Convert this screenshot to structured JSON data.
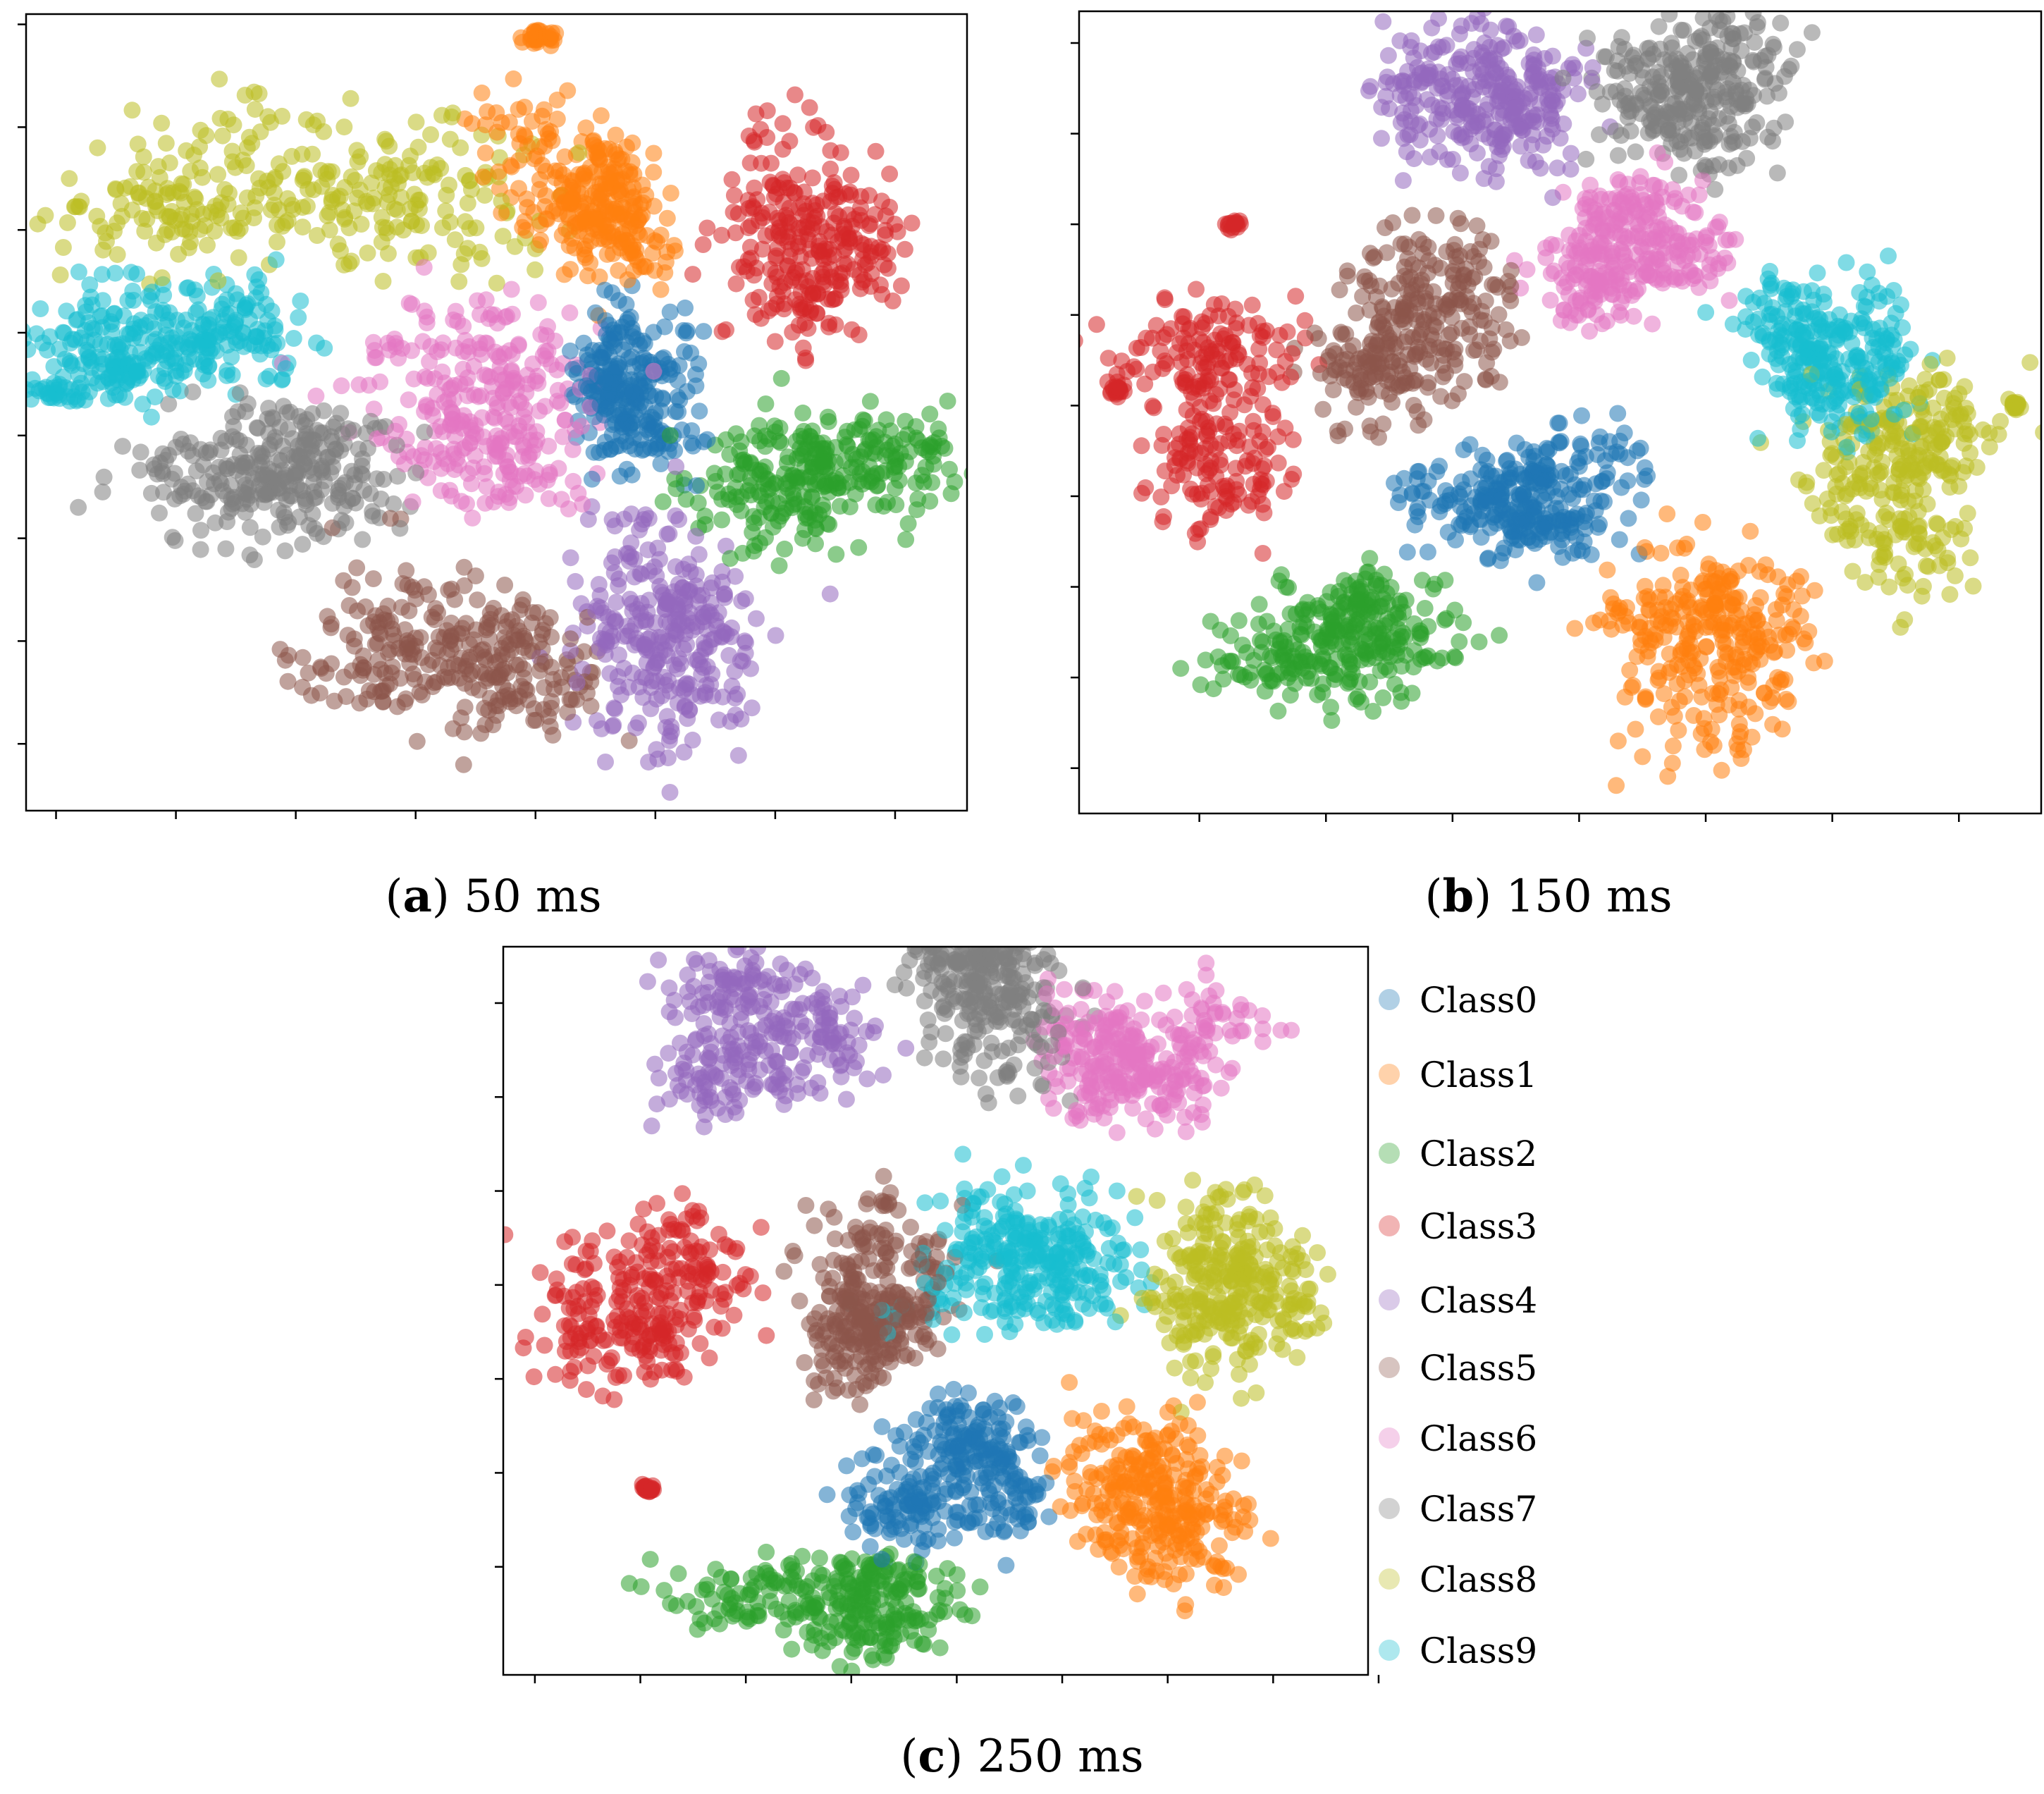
{
  "chart_data": [
    {
      "type": "scatter",
      "panel": "a",
      "caption_label": "a",
      "caption_text": " 50 ms",
      "xlabel": "",
      "ylabel": "",
      "tick_labels_shown": false,
      "grid": false,
      "x_ticks": [
        -80,
        -60,
        -40,
        -20,
        0,
        20,
        40,
        60
      ],
      "y_ticks": [
        -60,
        -40,
        -20,
        0,
        20,
        40,
        60,
        80
      ],
      "xlim": [
        -85,
        72
      ],
      "ylim": [
        -73,
        82
      ],
      "clusters": [
        {
          "class": 0,
          "lobes": [
            [
              18,
              10,
              9,
              17,
              260
            ]
          ]
        },
        {
          "class": 1,
          "lobes": [
            [
              8,
              50,
              16,
              18,
              290
            ],
            [
              0,
              79,
              4,
              3,
              30
            ]
          ]
        },
        {
          "class": 2,
          "lobes": [
            [
              50,
              -5,
              18,
              16,
              300
            ]
          ]
        },
        {
          "class": 3,
          "lobes": [
            [
              44,
              45,
              15,
              22,
              280
            ]
          ]
        },
        {
          "class": 4,
          "lobes": [
            [
              22,
              -35,
              16,
              23,
              300
            ]
          ]
        },
        {
          "class": 5,
          "lobes": [
            [
              -13,
              -42,
              22,
              17,
              300
            ]
          ]
        },
        {
          "class": 6,
          "lobes": [
            [
              -12,
              4,
              21,
              19,
              300
            ]
          ]
        },
        {
          "class": 7,
          "lobes": [
            [
              -48,
              -10,
              21,
              16,
              300
            ]
          ]
        },
        {
          "class": 8,
          "lobes": [
            [
              -38,
              44,
              34,
              18,
              320
            ]
          ]
        },
        {
          "class": 9,
          "lobes": [
            [
              -58,
              20,
              20,
              18,
              280
            ],
            [
              -77,
              13,
              8,
              6,
              60
            ]
          ]
        }
      ]
    },
    {
      "type": "scatter",
      "panel": "b",
      "caption_label": "b",
      "caption_text": " 150 ms",
      "xlabel": "",
      "ylabel": "",
      "tick_labels_shown": false,
      "grid": false,
      "x_ticks": [
        -60,
        -40,
        -20,
        0,
        20,
        40,
        60
      ],
      "y_ticks": [
        -80,
        -60,
        -40,
        -20,
        0,
        20,
        40,
        60,
        80
      ],
      "xlim": [
        -79,
        73
      ],
      "ylim": [
        -90,
        87
      ],
      "clusters": [
        {
          "class": 0,
          "lobes": [
            [
              -8,
              -20,
              15,
              15,
              300
            ]
          ]
        },
        {
          "class": 1,
          "lobes": [
            [
              20,
              -52,
              16,
              22,
              300
            ]
          ]
        },
        {
          "class": 2,
          "lobes": [
            [
              -38,
              -52,
              20,
              14,
              300
            ]
          ]
        },
        {
          "class": 3,
          "lobes": [
            [
              -60,
              0,
              14,
              22,
              260
            ],
            [
              -74,
              2,
              2,
              3,
              20
            ],
            [
              -55,
              40,
              2,
              2,
              15
            ]
          ]
        },
        {
          "class": 4,
          "lobes": [
            [
              -20,
              63,
              18,
              18,
              300
            ]
          ]
        },
        {
          "class": 5,
          "lobes": [
            [
              -27,
              20,
              15,
              18,
              300
            ]
          ]
        },
        {
          "class": 6,
          "lobes": [
            [
              10,
              30,
              14,
              17,
              300
            ]
          ]
        },
        {
          "class": 7,
          "lobes": [
            [
              20,
              64,
              16,
              18,
              300
            ]
          ]
        },
        {
          "class": 8,
          "lobes": [
            [
              53,
              -18,
              14,
              22,
              290
            ],
            [
              68,
              0,
              2,
              2,
              20
            ]
          ]
        },
        {
          "class": 9,
          "lobes": [
            [
              39,
              12,
              15,
              20,
              290
            ]
          ]
        }
      ]
    },
    {
      "type": "scatter",
      "panel": "c",
      "caption_label": "c",
      "caption_text": " 250 ms",
      "xlabel": "",
      "ylabel": "",
      "tick_labels_shown": false,
      "grid": false,
      "x_ticks": [
        -80,
        -60,
        -40,
        -20,
        0,
        20,
        40,
        60,
        80
      ],
      "y_ticks": [
        -60,
        -40,
        -20,
        0,
        20,
        40,
        60,
        80
      ],
      "xlim": [
        -86,
        78
      ],
      "ylim": [
        -83,
        72
      ],
      "clusters": [
        {
          "class": 0,
          "lobes": [
            [
              -1,
              -42,
              16,
              14,
              300
            ]
          ]
        },
        {
          "class": 1,
          "lobes": [
            [
              36,
              -50,
              17,
              21,
              300
            ]
          ]
        },
        {
          "class": 2,
          "lobes": [
            [
              -24,
              -68,
              24,
              12,
              280
            ]
          ]
        },
        {
          "class": 3,
          "lobes": [
            [
              -60,
              -3,
              18,
              18,
              270
            ],
            [
              -60,
              -43,
              2,
              2,
              20
            ]
          ]
        },
        {
          "class": 4,
          "lobes": [
            [
              -38,
              54,
              20,
              16,
              280
            ]
          ]
        },
        {
          "class": 5,
          "lobes": [
            [
              -18,
              -3,
              15,
              18,
              300
            ]
          ]
        },
        {
          "class": 6,
          "lobes": [
            [
              35,
              52,
              18,
              17,
              300
            ]
          ]
        },
        {
          "class": 7,
          "lobes": [
            [
              3,
              60,
              16,
              19,
              300
            ]
          ]
        },
        {
          "class": 8,
          "lobes": [
            [
              52,
              -1,
              17,
              18,
              300
            ]
          ]
        },
        {
          "class": 9,
          "lobes": [
            [
              12,
              4,
              21,
              15,
              300
            ]
          ]
        }
      ]
    }
  ],
  "legend": {
    "placement": "right of panel c",
    "entries": [
      {
        "label": "Class0",
        "color": "#1f77b4"
      },
      {
        "label": "Class1",
        "color": "#ff7f0e"
      },
      {
        "label": "Class2",
        "color": "#2ca02c"
      },
      {
        "label": "Class3",
        "color": "#d62728"
      },
      {
        "label": "Class4",
        "color": "#9467bd"
      },
      {
        "label": "Class5",
        "color": "#8c564b"
      },
      {
        "label": "Class6",
        "color": "#e377c2"
      },
      {
        "label": "Class7",
        "color": "#7f7f7f"
      },
      {
        "label": "Class8",
        "color": "#bcbd22"
      },
      {
        "label": "Class9",
        "color": "#17becf"
      }
    ]
  }
}
